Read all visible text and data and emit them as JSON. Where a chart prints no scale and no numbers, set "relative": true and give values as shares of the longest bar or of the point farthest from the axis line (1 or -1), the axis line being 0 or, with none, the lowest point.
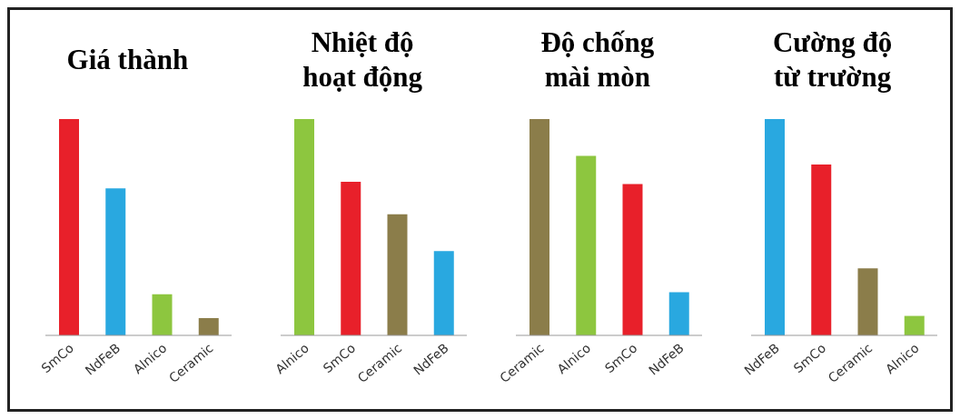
{
  "chart_data": [
    {
      "type": "bar",
      "title": "Giá thành",
      "categories": [
        "SmCo",
        "NdFeB",
        "Alnico",
        "Ceramic"
      ],
      "values": [
        1,
        0.68,
        0.19,
        0.08
      ],
      "colors": [
        "#e8202a",
        "#29a8e0",
        "#8dc63f",
        "#8b7d4a"
      ],
      "relative": true
    },
    {
      "type": "bar",
      "title": "Nhiệt độ hoạt động",
      "categories": [
        "Alnico",
        "SmCo",
        "Ceramic",
        "NdFeB"
      ],
      "values": [
        1,
        0.71,
        0.56,
        0.39
      ],
      "colors": [
        "#8dc63f",
        "#e8202a",
        "#8b7d4a",
        "#29a8e0"
      ],
      "relative": true
    },
    {
      "type": "bar",
      "title": "Độ chống mài mòn",
      "categories": [
        "Ceramic",
        "Alnico",
        "SmCo",
        "NdFeB"
      ],
      "values": [
        1,
        0.83,
        0.7,
        0.2
      ],
      "colors": [
        "#8b7d4a",
        "#8dc63f",
        "#e8202a",
        "#29a8e0"
      ],
      "relative": true
    },
    {
      "type": "bar",
      "title": "Cường độ từ trường",
      "categories": [
        "NdFeB",
        "SmCo",
        "Ceramic",
        "Alnico"
      ],
      "values": [
        1,
        0.79,
        0.31,
        0.09
      ],
      "colors": [
        "#29a8e0",
        "#e8202a",
        "#8b7d4a",
        "#8dc63f"
      ],
      "relative": true
    }
  ]
}
